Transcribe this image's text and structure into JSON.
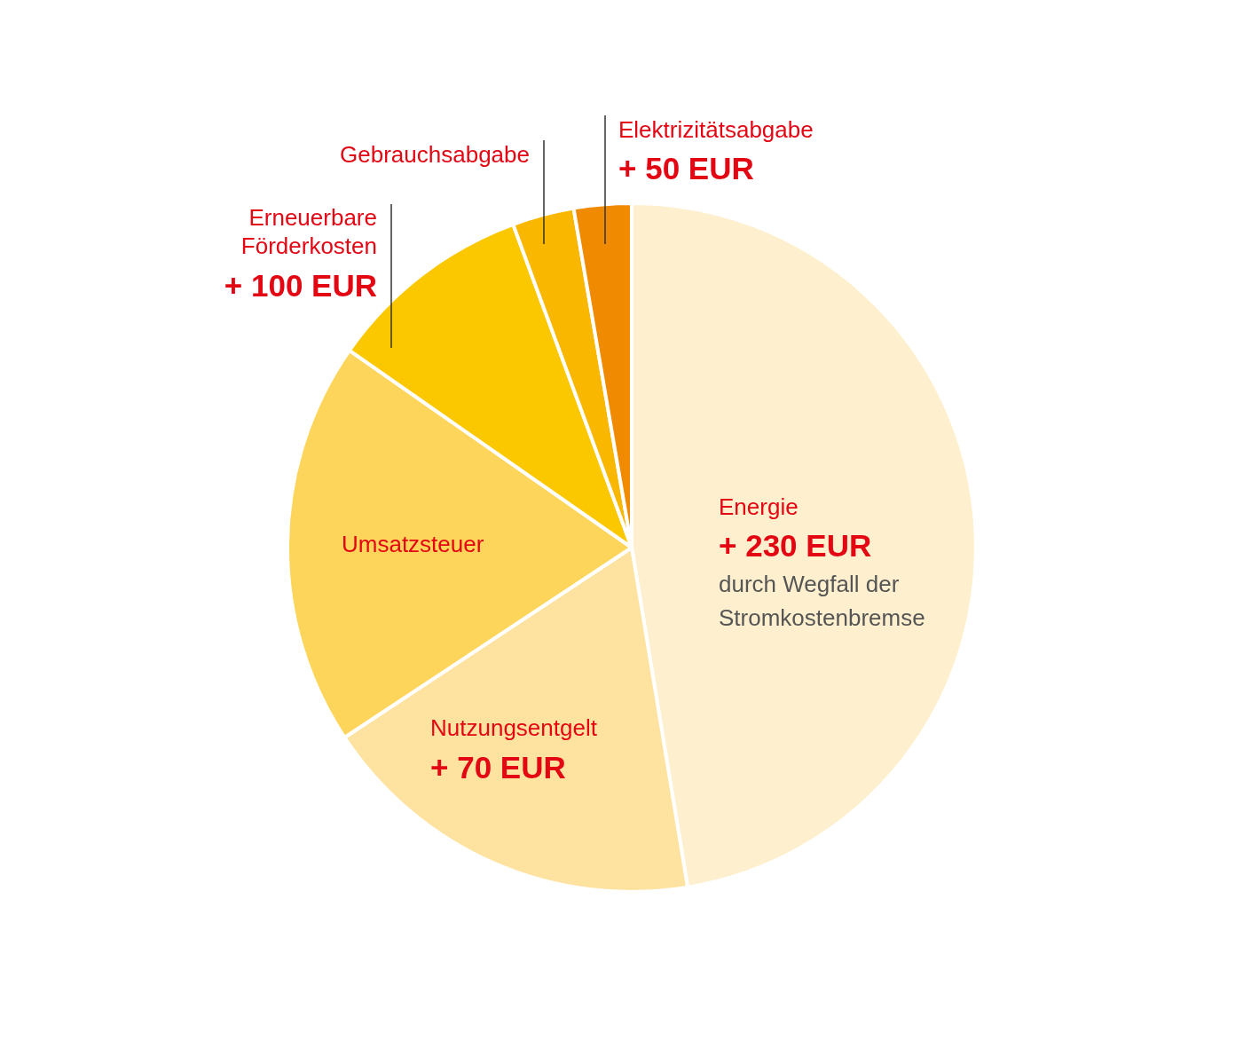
{
  "chart_data": {
    "type": "pie",
    "categories": [
      "Energie",
      "Nutzungsentgelt",
      "Umsatzsteuer",
      "Erneuerbare Förderkosten",
      "Gebrauchsabgabe",
      "Elektrizitätsabgabe"
    ],
    "values": [
      47.4,
      18.3,
      19.0,
      9.7,
      2.9,
      2.7
    ],
    "colors": [
      "#fef0cf",
      "#fde39f",
      "#fdd55a",
      "#fbc800",
      "#f9b700",
      "#f08a00"
    ],
    "annotations": [
      "+ 230 EUR",
      "durch Wegfall der Stromkostenbremse",
      "+ 70 EUR",
      "+ 100 EUR",
      "+ 50 EUR"
    ]
  }
}
